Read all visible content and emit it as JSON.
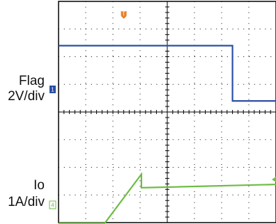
{
  "chart_data": {
    "type": "line",
    "title": "",
    "trigger_marker": "T",
    "grid": true,
    "series": [
      {
        "name": "Flag",
        "scale": "2V/div",
        "color": "#2a4fa3",
        "marker": "1",
        "points": [
          [
            0,
            2.4
          ],
          [
            6.4,
            2.4
          ],
          [
            6.4,
            0.4
          ],
          [
            8,
            0.4
          ]
        ]
      },
      {
        "name": "Io",
        "scale": "1A/div",
        "color": "#6cbd45",
        "marker": "4",
        "points": [
          [
            0,
            -4.02
          ],
          [
            1.7,
            -4.02
          ],
          [
            3.05,
            -2.25
          ],
          [
            3.05,
            -2.74
          ],
          [
            8,
            -2.62
          ]
        ]
      }
    ]
  },
  "labels": {
    "flag_name": "Flag",
    "flag_scale": "2V/div",
    "io_name": "Io",
    "io_scale": "1A/div"
  }
}
